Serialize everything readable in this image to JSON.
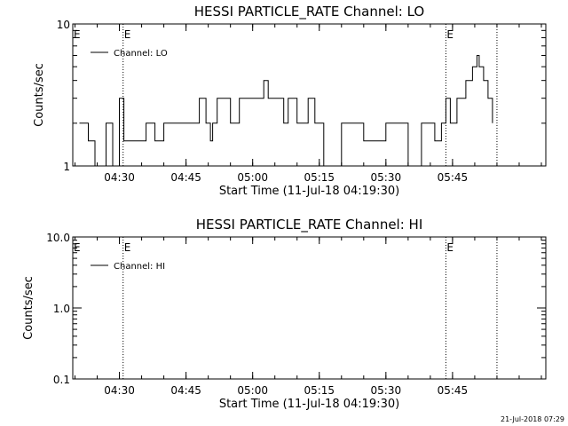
{
  "footer": {
    "timestamp": "21-Jul-2018 07:29"
  },
  "chart_data": [
    {
      "type": "line",
      "title": "HESSI PARTICLE_RATE Channel: LO",
      "xlabel": "Start Time (11-Jul-18 04:19:30)",
      "ylabel": "Counts/sec",
      "x_tick_labels": [
        "04:30",
        "04:45",
        "05:00",
        "05:15",
        "05:30",
        "05:45"
      ],
      "y_tick_labels": [
        "1",
        "10"
      ],
      "y_scale": "log",
      "ylim": [
        1,
        10
      ],
      "xlim": [
        "04:19:30",
        "06:06:00"
      ],
      "legend": "top-left",
      "grid": false,
      "markers": [
        {
          "time": "04:30:50",
          "label": "E"
        },
        {
          "time": "05:43:30",
          "label": "E"
        },
        {
          "time": "05:55:00",
          "label": ""
        }
      ],
      "series": [
        {
          "name": "Channel: LO",
          "x": [
            "04:21:00",
            "04:23:00",
            "04:24:30",
            "04:27:00",
            "04:28:30",
            "04:30:00",
            "04:31:00",
            "04:36:00",
            "04:38:00",
            "04:40:00",
            "04:45:00",
            "04:48:00",
            "04:49:30",
            "04:50:30",
            "04:51:00",
            "04:52:00",
            "04:55:00",
            "04:57:00",
            "05:00:00",
            "05:01:30",
            "05:02:30",
            "05:03:30",
            "05:05:00",
            "05:07:00",
            "05:08:00",
            "05:10:00",
            "05:12:30",
            "05:14:00",
            "05:16:00",
            "05:20:00",
            "05:25:00",
            "05:30:00",
            "05:35:00",
            "05:38:00",
            "05:41:00",
            "05:42:30",
            "05:43:30",
            "05:44:30",
            "05:46:00",
            "05:48:00",
            "05:49:30",
            "05:50:30",
            "05:51:00",
            "05:52:00",
            "05:53:00",
            "05:54:00"
          ],
          "values": [
            2,
            1.5,
            1,
            2,
            1,
            3,
            1.5,
            2,
            1.5,
            2,
            2,
            3,
            2,
            1.5,
            2,
            3,
            2,
            3,
            3,
            3,
            4,
            3,
            3,
            2,
            3,
            2,
            3,
            2,
            1,
            2,
            1.5,
            2,
            1,
            2,
            1.5,
            2,
            3,
            2,
            3,
            4,
            5,
            6,
            5,
            4,
            3,
            2
          ]
        }
      ]
    },
    {
      "type": "line",
      "title": "HESSI PARTICLE_RATE Channel: HI",
      "xlabel": "Start Time (11-Jul-18 04:19:30)",
      "ylabel": "Counts/sec",
      "x_tick_labels": [
        "04:30",
        "04:45",
        "05:00",
        "05:15",
        "05:30",
        "05:45"
      ],
      "y_tick_labels": [
        "0.1",
        "1.0",
        "10.0"
      ],
      "y_scale": "log",
      "ylim": [
        0.1,
        10
      ],
      "xlim": [
        "04:19:30",
        "06:06:00"
      ],
      "legend": "top-left",
      "grid": false,
      "markers": [
        {
          "time": "04:30:50",
          "label": "E"
        },
        {
          "time": "05:43:30",
          "label": "E"
        },
        {
          "time": "05:55:00",
          "label": ""
        }
      ],
      "series": [
        {
          "name": "Channel: HI",
          "x": [],
          "values": []
        }
      ]
    }
  ]
}
